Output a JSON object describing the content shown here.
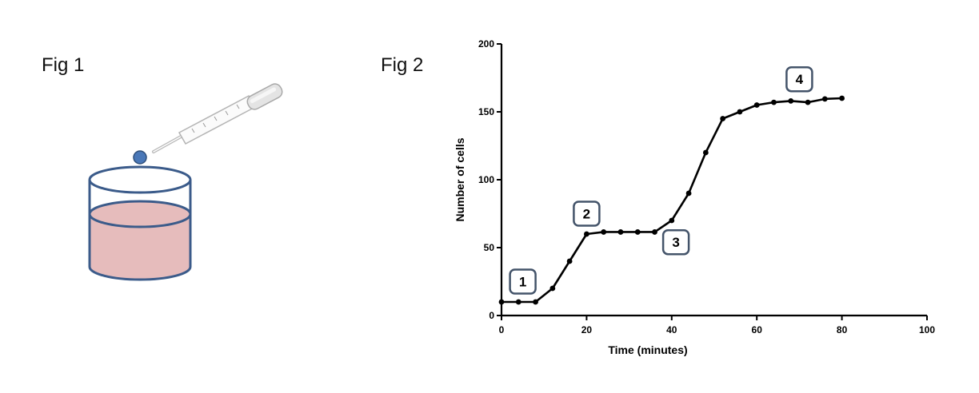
{
  "figures": {
    "fig1_label": "Fig 1",
    "fig2_label": "Fig 2"
  },
  "illustration": {
    "liquid_color": "#e6bcbc",
    "outline_color": "#3b5b8a",
    "drop_color": "#4a78b8"
  },
  "chart_data": {
    "type": "line",
    "title": "",
    "xlabel": "Time (minutes)",
    "ylabel": "Number of cells",
    "xlim": [
      0,
      100
    ],
    "ylim": [
      0,
      200
    ],
    "x_ticks": [
      "0",
      "20",
      "40",
      "60",
      "80",
      "100"
    ],
    "y_ticks": [
      "0",
      "50",
      "100",
      "150",
      "200"
    ],
    "grid": false,
    "series": [
      {
        "x": [
          0,
          4,
          8,
          12,
          16,
          20,
          24,
          28,
          32,
          36,
          40,
          44,
          48,
          52,
          56,
          60,
          64,
          68,
          72,
          76,
          80
        ],
        "y": [
          10,
          10,
          10,
          20,
          40,
          60,
          61.5,
          61.5,
          61.5,
          61.5,
          70,
          90,
          120,
          145,
          150,
          155,
          157,
          158,
          157,
          159.5,
          160
        ]
      }
    ],
    "annotations": [
      {
        "text": "1",
        "x": 5,
        "y": 25
      },
      {
        "text": "2",
        "x": 20,
        "y": 75
      },
      {
        "text": "3",
        "x": 41,
        "y": 54
      },
      {
        "text": "4",
        "x": 70,
        "y": 174
      }
    ]
  }
}
